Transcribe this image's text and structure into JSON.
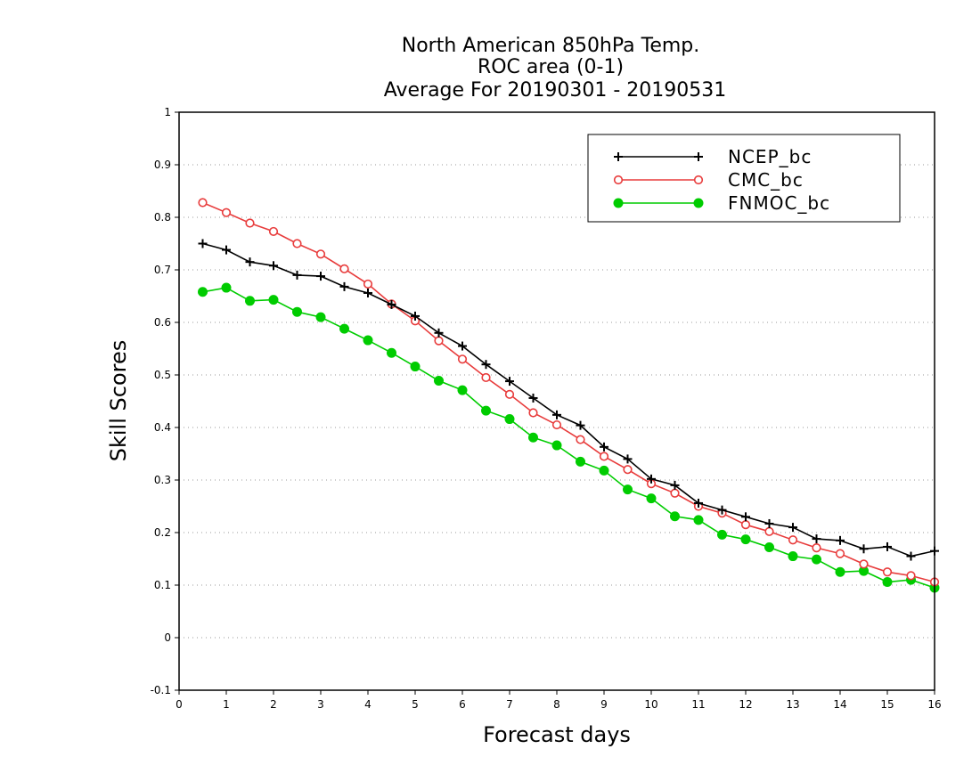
{
  "chart_data": {
    "type": "line",
    "title": [
      "North American 850hPa Temp.",
      "ROC area (0-1)",
      "Average For 20190301 - 20190531"
    ],
    "xlabel": "Forecast days",
    "ylabel": "Skill Scores",
    "xlim": [
      0,
      16
    ],
    "ylim": [
      -0.1,
      1
    ],
    "xticks": [
      0,
      1,
      2,
      3,
      4,
      5,
      6,
      7,
      8,
      9,
      10,
      11,
      12,
      13,
      14,
      15,
      16
    ],
    "yticks": [
      -0.1,
      0,
      0.1,
      0.2,
      0.3,
      0.4,
      0.5,
      0.6,
      0.7,
      0.8,
      0.9,
      1
    ],
    "ytick_labels": [
      "-0.1",
      "0",
      "0.1",
      "0.2",
      "0.3",
      "0.4",
      "0.5",
      "0.6",
      "0.7",
      "0.8",
      "0.9",
      "1"
    ],
    "grid": "horizontal dotted",
    "legend_position": "top-right",
    "x": [
      0.5,
      1,
      1.5,
      2,
      2.5,
      3,
      3.5,
      4,
      4.5,
      5,
      5.5,
      6,
      6.5,
      7,
      7.5,
      8,
      8.5,
      9,
      9.5,
      10,
      10.5,
      11,
      11.5,
      12,
      12.5,
      13,
      13.5,
      14,
      14.5,
      15,
      15.5,
      16
    ],
    "series": [
      {
        "name": "NCEP_bc",
        "color": "#000000",
        "marker": "plus",
        "values": [
          0.75,
          0.738,
          0.715,
          0.708,
          0.69,
          0.688,
          0.668,
          0.656,
          0.634,
          0.612,
          0.58,
          0.555,
          0.52,
          0.488,
          0.456,
          0.424,
          0.404,
          0.363,
          0.34,
          0.302,
          0.29,
          0.256,
          0.243,
          0.23,
          0.217,
          0.21,
          0.188,
          0.185,
          0.169,
          0.173,
          0.155,
          0.165
        ]
      },
      {
        "name": "CMC_bc",
        "color": "#e83c3c",
        "marker": "open-circle",
        "values": [
          0.828,
          0.809,
          0.789,
          0.773,
          0.75,
          0.73,
          0.702,
          0.673,
          0.635,
          0.603,
          0.565,
          0.53,
          0.495,
          0.463,
          0.428,
          0.405,
          0.377,
          0.345,
          0.32,
          0.293,
          0.275,
          0.25,
          0.237,
          0.215,
          0.202,
          0.186,
          0.171,
          0.16,
          0.14,
          0.125,
          0.118,
          0.106
        ]
      },
      {
        "name": "FNMOC_bc",
        "color": "#00cc00",
        "marker": "filled-circle",
        "values": [
          0.658,
          0.666,
          0.641,
          0.643,
          0.62,
          0.61,
          0.588,
          0.566,
          0.542,
          0.516,
          0.489,
          0.471,
          0.432,
          0.416,
          0.381,
          0.366,
          0.335,
          0.318,
          0.282,
          0.265,
          0.231,
          0.224,
          0.196,
          0.187,
          0.172,
          0.155,
          0.149,
          0.125,
          0.127,
          0.106,
          0.11,
          0.095
        ]
      }
    ]
  }
}
